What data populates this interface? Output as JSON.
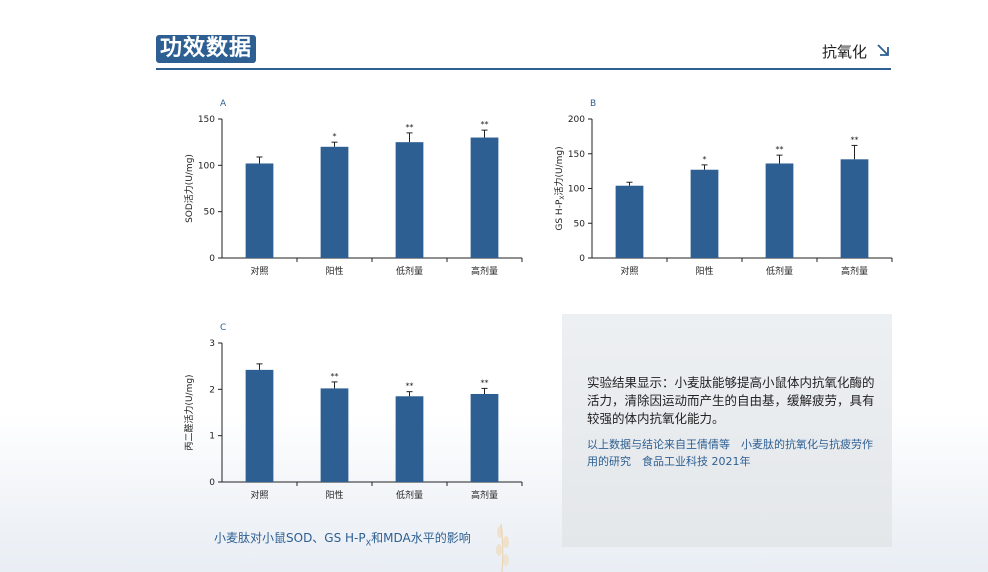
{
  "header": {
    "title": "功效数据",
    "section_label": "抗氧化",
    "accent_color": "#2d5f92",
    "icon": "arrow-down-right-icon"
  },
  "chart_data": [
    {
      "type": "bar",
      "panel_label": "A",
      "categories": [
        "对照",
        "阳性",
        "低剂量",
        "高剂量"
      ],
      "values": [
        102,
        120,
        125,
        130
      ],
      "errors": [
        7,
        5,
        10,
        8
      ],
      "significance": [
        "",
        "*",
        "**",
        "**"
      ],
      "ylabel": "SOD活力(U/mg)",
      "ylim": [
        0,
        150
      ],
      "yticks": [
        0,
        50,
        100,
        150
      ],
      "color": "#2d5f92"
    },
    {
      "type": "bar",
      "panel_label": "B",
      "categories": [
        "对照",
        "阳性",
        "低剂量",
        "高剂量"
      ],
      "values": [
        104,
        127,
        136,
        142
      ],
      "errors": [
        5,
        7,
        12,
        20
      ],
      "significance": [
        "",
        "*",
        "**",
        "**"
      ],
      "ylabel_main": "GS H-P",
      "ylabel_sub": "X",
      "ylabel_tail": "活力(U/mg)",
      "ylim": [
        0,
        200
      ],
      "yticks": [
        0,
        50,
        100,
        150,
        200
      ],
      "color": "#2d5f92"
    },
    {
      "type": "bar",
      "panel_label": "C",
      "categories": [
        "对照",
        "阳性",
        "低剂量",
        "高剂量"
      ],
      "values": [
        2.42,
        2.02,
        1.85,
        1.9
      ],
      "errors": [
        0.13,
        0.14,
        0.1,
        0.12
      ],
      "significance": [
        "",
        "**",
        "**",
        "**"
      ],
      "ylabel": "丙二醛活力(U/mg)",
      "ylim": [
        0,
        3
      ],
      "yticks": [
        0,
        1,
        2,
        3
      ],
      "color": "#2d5f92"
    }
  ],
  "info": {
    "conclusion": "实验结果显示：小麦肽能够提高小鼠体内抗氧化酶的活力，清除因运动而产生的自由基，缓解疲劳，具有较强的体内抗氧化能力。",
    "reference": "以上数据与结论来自王倩倩等　小麦肽的抗氧化与抗疲劳作用的研究　食品工业科技 2021年"
  },
  "caption": {
    "prefix": "小麦肽对小鼠SOD、GS H-P",
    "sub": "X",
    "suffix": "和MDA水平的影响"
  }
}
